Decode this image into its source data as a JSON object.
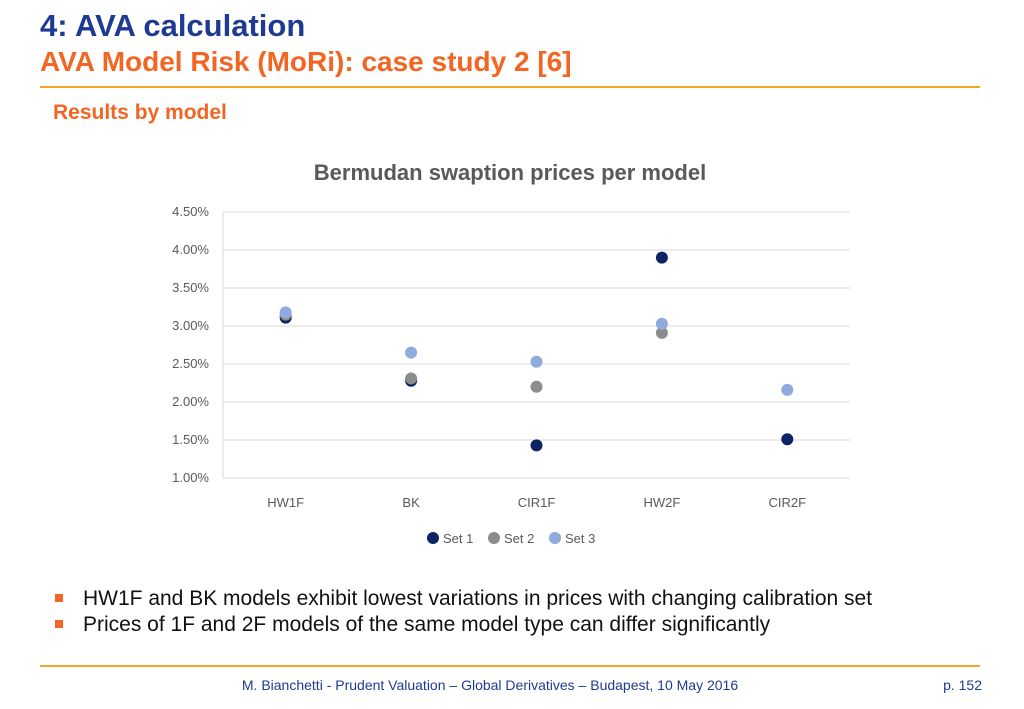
{
  "header": {
    "title": "4: AVA calculation",
    "subtitle": "AVA Model Risk (MoRi): case study 2 [6]",
    "section": "Results by model"
  },
  "chart_data": {
    "type": "scatter",
    "title": "Bermudan swaption prices per model",
    "categories": [
      "HW1F",
      "BK",
      "CIR1F",
      "HW2F",
      "CIR2F"
    ],
    "ylim": [
      0.01,
      0.045
    ],
    "yticks": [
      "1.00%",
      "1.50%",
      "2.00%",
      "2.50%",
      "3.00%",
      "3.50%",
      "4.00%",
      "4.50%"
    ],
    "grid": true,
    "legend_position": "bottom",
    "series": [
      {
        "name": "Set 1",
        "color": "#0d2366",
        "values": [
          0.0311,
          0.0228,
          0.0143,
          0.039,
          0.0151
        ]
      },
      {
        "name": "Set 2",
        "color": "#8c8c8c",
        "values": [
          0.0315,
          0.0231,
          0.022,
          0.0291,
          null
        ]
      },
      {
        "name": "Set 3",
        "color": "#8faadc",
        "values": [
          0.0318,
          0.0265,
          0.0253,
          0.0303,
          0.0216
        ]
      }
    ]
  },
  "bullets": [
    "HW1F and BK models exhibit lowest variations in prices with changing calibration set",
    "Prices of 1F and 2F models of the same model type can differ significantly"
  ],
  "footer": {
    "text": "M. Bianchetti - Prudent Valuation – Global Derivatives – Budapest, 10 May 2016",
    "page": "p. 152"
  },
  "colors": {
    "title_blue": "#1f3a93",
    "accent_orange": "#f26522",
    "rule_orange": "#f5a623"
  }
}
